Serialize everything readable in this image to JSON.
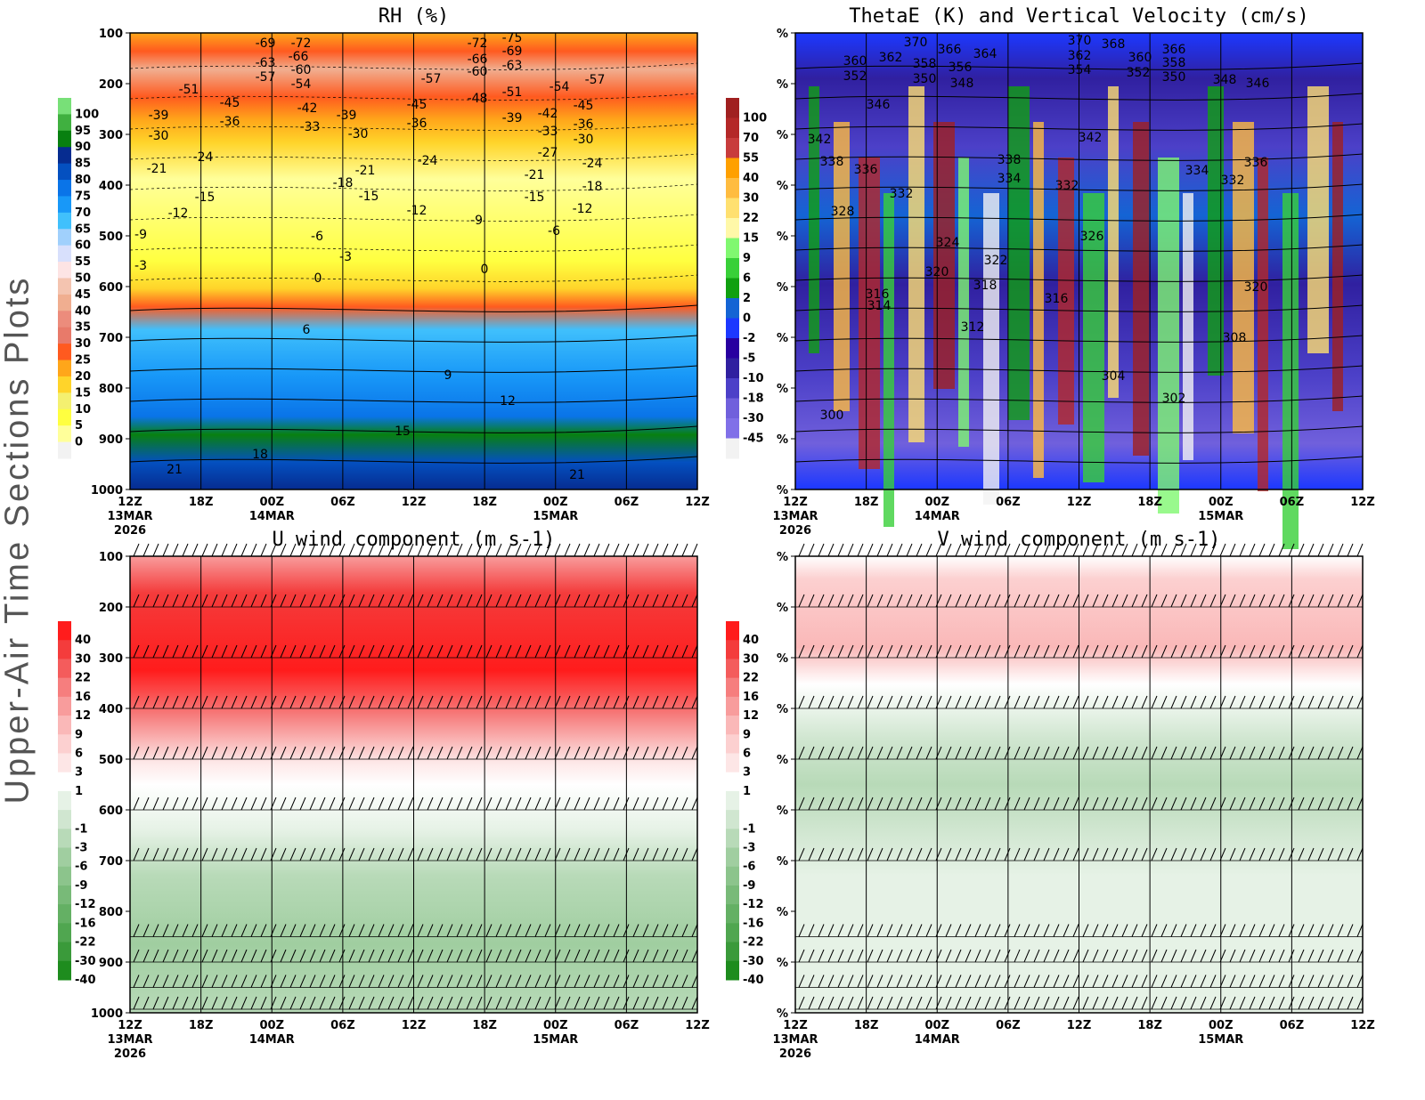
{
  "side_title": "Upper-Air Time Sections Plots",
  "time_ticks": [
    "12Z",
    "18Z",
    "00Z",
    "06Z",
    "12Z",
    "18Z",
    "00Z",
    "06Z",
    "12Z"
  ],
  "date_labels": [
    {
      "at": 0,
      "text": "13MAR"
    },
    {
      "at": 2,
      "text": "14MAR"
    },
    {
      "at": 6,
      "text": "15MAR"
    }
  ],
  "year": "2026",
  "pressure_ticks": [
    "100",
    "200",
    "300",
    "400",
    "500",
    "600",
    "700",
    "800",
    "900",
    "1000"
  ],
  "right_axis_tick": "%",
  "chart_data": [
    {
      "type": "heatmap",
      "title": "RH (%)",
      "ylim": [
        1000,
        100
      ],
      "colorbar": {
        "levels": [
          "0",
          "5",
          "10",
          "15",
          "20",
          "25",
          "30",
          "35",
          "40",
          "45",
          "50",
          "55",
          "60",
          "65",
          "70",
          "75",
          "80",
          "85",
          "90",
          "95",
          "100"
        ],
        "colors": [
          "#f2f2f2",
          "#ffff9a",
          "#ffff40",
          "#f4f070",
          "#ffd42a",
          "#ffa61a",
          "#ff5a1f",
          "#e87a6a",
          "#ec8c7c",
          "#f0ae90",
          "#f4c4b0",
          "#fde4e4",
          "#d8e0fc",
          "#a0d0fc",
          "#40c0fc",
          "#1898f8",
          "#0a74e8",
          "#0450c0",
          "#062c90",
          "#088010",
          "#40b040",
          "#78e078"
        ]
      },
      "contour_labels": [
        "-69",
        "-72",
        "-63",
        "-66",
        "-57",
        "-60",
        "-54",
        "-51",
        "-45",
        "-42",
        "-39",
        "-36",
        "-33",
        "-39",
        "-30",
        "-30",
        "-45",
        "-36",
        "-57",
        "-72",
        "-75",
        "-69",
        "-66",
        "-63",
        "-60",
        "-48",
        "-51",
        "-39",
        "-42",
        "-36",
        "-33",
        "-30",
        "-27",
        "-54",
        "-57",
        "-45",
        "-21",
        "-24",
        "-18",
        "-15",
        "-12",
        "-24",
        "-21",
        "-18",
        "-15",
        "-12",
        "-9",
        "-6",
        "-21",
        "-24",
        "-15",
        "-12",
        "-9",
        "-3",
        "-6",
        "-3",
        "0",
        "0",
        "6",
        "9",
        "12",
        "15",
        "18",
        "21",
        "21"
      ]
    },
    {
      "type": "heatmap",
      "title": "ThetaE (K) and Vertical Velocity (cm/s)",
      "colorbar": {
        "levels": [
          "-45",
          "-30",
          "-18",
          "-10",
          "-5",
          "-2",
          "0",
          "2",
          "6",
          "9",
          "15",
          "22",
          "30",
          "40",
          "55",
          "70",
          "100"
        ],
        "colors": [
          "#f2f2f2",
          "#8070e8",
          "#7060dc",
          "#4c40c8",
          "#3020a0",
          "#2800a0",
          "#1c38ff",
          "#1464d4",
          "#10a010",
          "#38d038",
          "#80f870",
          "#fff8a8",
          "#ffe070",
          "#ffbc40",
          "#ffa000",
          "#c83c3c",
          "#b42828",
          "#a02020"
        ]
      },
      "contour_labels": [
        "370",
        "366",
        "364",
        "360",
        "362",
        "358",
        "356",
        "352",
        "350",
        "348",
        "370",
        "368",
        "362",
        "360",
        "366",
        "358",
        "354",
        "352",
        "350",
        "348",
        "346",
        "346",
        "342",
        "342",
        "338",
        "336",
        "332",
        "338",
        "334",
        "332",
        "334",
        "332",
        "336",
        "328",
        "324",
        "322",
        "320",
        "318",
        "326",
        "316",
        "314",
        "316",
        "320",
        "312",
        "308",
        "304",
        "302",
        "300"
      ]
    },
    {
      "type": "heatmap",
      "title": "U wind component (m s-1)",
      "ylim": [
        1000,
        100
      ],
      "colorbar": {
        "levels": [
          "-40",
          "-30",
          "-22",
          "-16",
          "-12",
          "-9",
          "-6",
          "-3",
          "-1",
          "1",
          "3",
          "6",
          "9",
          "12",
          "16",
          "22",
          "30",
          "40"
        ],
        "colors": [
          "#1e8c1e",
          "#3a9a3a",
          "#50a650",
          "#64b064",
          "#78ba78",
          "#8cc48c",
          "#a0cea0",
          "#b8dab8",
          "#d0e6d0",
          "#e6f2e6",
          "#ffffff",
          "#fde6e6",
          "#fcd0d0",
          "#fab8b8",
          "#f89c9c",
          "#f67e7e",
          "#f45c5c",
          "#f43c3c",
          "#ff1c1c"
        ]
      }
    },
    {
      "type": "heatmap",
      "title": "V wind component (m s-1)",
      "colorbar": {
        "levels": [
          "-40",
          "-30",
          "-22",
          "-16",
          "-12",
          "-9",
          "-6",
          "-3",
          "-1",
          "1",
          "3",
          "6",
          "9",
          "12",
          "16",
          "22",
          "30",
          "40"
        ]
      }
    }
  ]
}
